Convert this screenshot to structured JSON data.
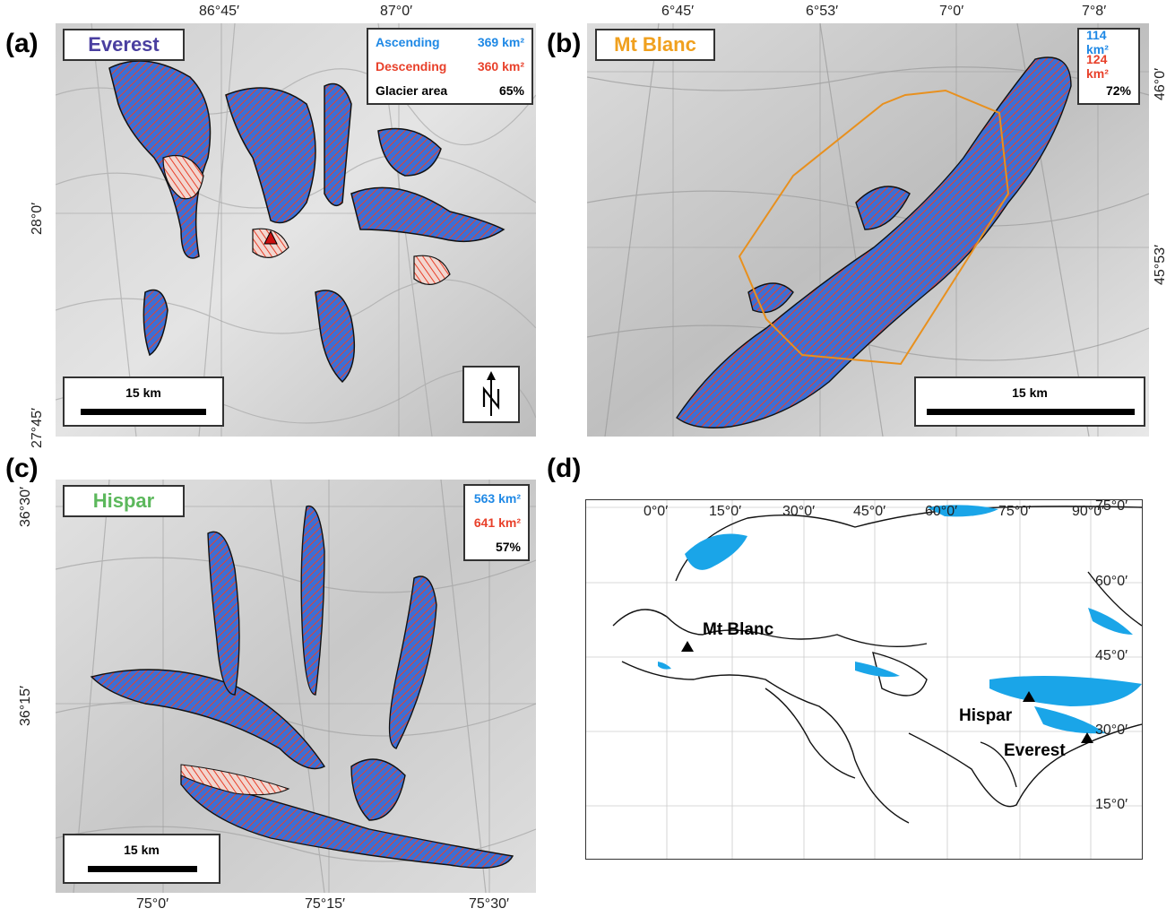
{
  "panels": {
    "a": {
      "letter": "(a)",
      "name": "Everest",
      "name_color": "#4a3fa0",
      "ascending_label": "Ascending",
      "ascending_value": "369 km²",
      "descending_label": "Descending",
      "descending_value": "360 km²",
      "area_label": "Glacier area",
      "area_value": "65%",
      "scale": "15 km",
      "top_ticks": [
        "86°45′",
        "87°0′"
      ],
      "left_ticks": [
        "28°0′",
        "27°45′"
      ]
    },
    "b": {
      "letter": "(b)",
      "name": "Mt Blanc",
      "name_color": "#f0a01e",
      "ascending_value": "114 km²",
      "descending_value": "124 km²",
      "area_value": "72%",
      "scale": "15 km",
      "top_ticks": [
        "6°45′",
        "6°53′",
        "7°0′",
        "7°8′"
      ],
      "right_ticks": [
        "46°0′",
        "45°53′"
      ]
    },
    "c": {
      "letter": "(c)",
      "name": "Hispar",
      "name_color": "#5cb85c",
      "ascending_value": "563 km²",
      "descending_value": "641 km²",
      "area_value": "57%",
      "scale": "15 km",
      "bottom_ticks": [
        "75°0′",
        "75°15′",
        "75°30′"
      ],
      "left_ticks": [
        "36°30′",
        "36°15′"
      ]
    },
    "d": {
      "letter": "(d)",
      "top_ticks": [
        "0°0′",
        "15°0′",
        "30°0′",
        "45°0′",
        "60°0′",
        "75°0′",
        "90°0′"
      ],
      "right_ticks": [
        "75°0′",
        "60°0′",
        "45°0′",
        "30°0′",
        "15°0′"
      ],
      "sites": [
        "Mt Blanc",
        "Hispar",
        "Everest"
      ]
    }
  },
  "colors": {
    "ascending": "#1e88e5",
    "descending": "#e8402a",
    "glacier_blue": "#1aa5e8",
    "outline_orange": "#e8901e"
  }
}
